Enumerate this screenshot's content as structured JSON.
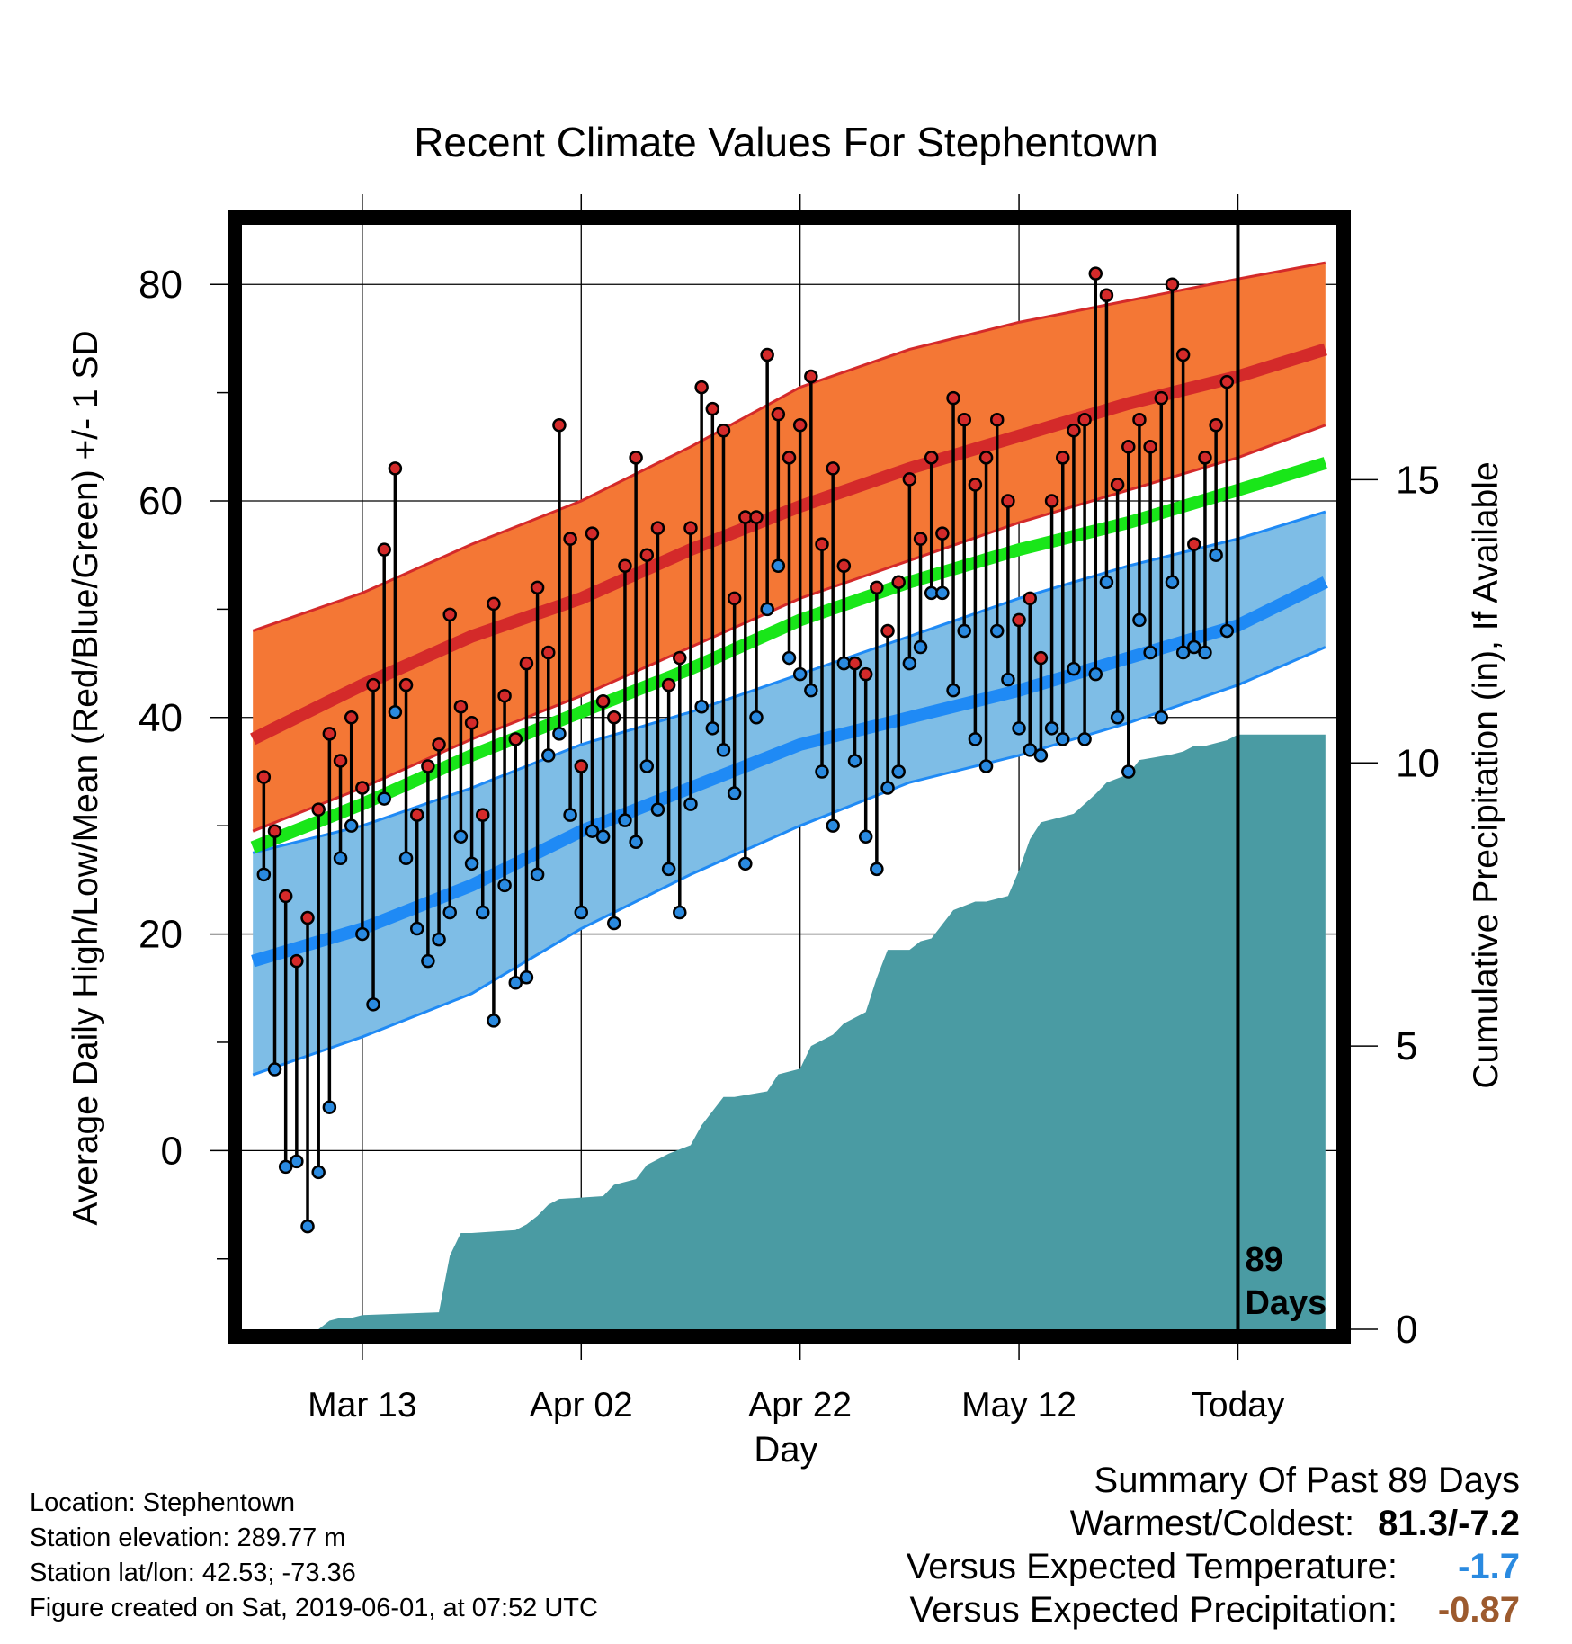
{
  "chart_data": {
    "type": "line",
    "title": "Recent Climate Values For Stephentown",
    "xlabel": "Day",
    "ylabel_left": "Average Daily High/Low/Mean (Red/Blue/Green) +/- 1 SD",
    "ylabel_right": "Cumulative Precipitation (in), If Available",
    "x_ticks": [
      {
        "day": 10,
        "label": "Mar 13"
      },
      {
        "day": 30,
        "label": "Apr 02"
      },
      {
        "day": 50,
        "label": "Apr 22"
      },
      {
        "day": 70,
        "label": "May 12"
      },
      {
        "day": 90,
        "label": "Today"
      }
    ],
    "xlim": [
      -1,
      99
    ],
    "ylim_left": [
      -16.5,
      85.5
    ],
    "y_ticks_left": [
      0,
      20,
      40,
      60,
      80
    ],
    "ylim_right": [
      0,
      19.5
    ],
    "y_ticks_right": [
      0,
      5,
      10,
      15
    ],
    "today_day": 90,
    "today_annotation": [
      "89",
      "Days"
    ],
    "normals": {
      "day": [
        0,
        10,
        20,
        30,
        40,
        50,
        60,
        70,
        80,
        90,
        98
      ],
      "high_mean": [
        38,
        43,
        47.5,
        51,
        55.5,
        59.5,
        63,
        66,
        69,
        71.5,
        74
      ],
      "high_sd_lower": [
        29.5,
        33.5,
        38,
        42,
        46.5,
        51,
        54.5,
        58,
        61,
        64,
        67
      ],
      "high_sd_upper": [
        48,
        51.5,
        56,
        60,
        65,
        70.5,
        74,
        76.5,
        78.5,
        80.5,
        82
      ],
      "mean": [
        28,
        32,
        36.5,
        40.5,
        44.5,
        49,
        52.5,
        55.5,
        58,
        61,
        63.5
      ],
      "low_mean": [
        17.5,
        20.5,
        24.5,
        29.5,
        33.5,
        37.5,
        40,
        42.5,
        45.5,
        48.5,
        52.5
      ],
      "low_sd_upper": [
        27.5,
        30,
        33.5,
        37.5,
        40.5,
        44,
        47.5,
        51,
        54,
        56.5,
        59
      ],
      "low_sd_lower": [
        7,
        10.5,
        14.5,
        20.5,
        25.5,
        30,
        34,
        36.5,
        39.5,
        43,
        46.5
      ]
    },
    "daily": {
      "day": [
        1,
        2,
        3,
        4,
        5,
        6,
        7,
        8,
        9,
        10,
        11,
        12,
        13,
        14,
        15,
        16,
        17,
        18,
        19,
        20,
        21,
        22,
        23,
        24,
        25,
        26,
        27,
        28,
        29,
        30,
        31,
        32,
        33,
        34,
        35,
        36,
        37,
        38,
        39,
        40,
        41,
        42,
        43,
        44,
        45,
        46,
        47,
        48,
        49,
        50,
        51,
        52,
        53,
        54,
        55,
        56,
        57,
        58,
        59,
        60,
        61,
        62,
        63,
        64,
        65,
        66,
        67,
        68,
        69,
        70,
        71,
        72,
        73,
        74,
        75,
        76,
        77,
        78,
        79,
        80,
        81,
        82,
        83,
        84,
        85,
        86,
        87,
        88,
        89
      ],
      "high": [
        34.5,
        29.5,
        23.5,
        17.5,
        21.5,
        31.5,
        38.5,
        36,
        40,
        33.5,
        43,
        55.5,
        63,
        43,
        31,
        35.5,
        37.5,
        49.5,
        41,
        39.5,
        31,
        50.5,
        42,
        38,
        45,
        52,
        46,
        67,
        56.5,
        35.5,
        57,
        41.5,
        40,
        54,
        64,
        55,
        57.5,
        43,
        45.5,
        57.5,
        70.5,
        68.5,
        66.5,
        51,
        58.5,
        58.5,
        73.5,
        68,
        64,
        67,
        71.5,
        56,
        63,
        54,
        45,
        44,
        52,
        48,
        52.5,
        62,
        56.5,
        64,
        57,
        69.5,
        67.5,
        61.5,
        64,
        67.5,
        60,
        49,
        51,
        45.5,
        60,
        64,
        66.5,
        67.5,
        81,
        79,
        61.5,
        65,
        67.5,
        65,
        69.5,
        80,
        73.5,
        56,
        64,
        67,
        71
      ],
      "low": [
        25.5,
        7.5,
        -1.5,
        -1,
        -7,
        -2,
        4,
        27,
        30,
        20,
        13.5,
        32.5,
        40.5,
        27,
        20.5,
        17.5,
        19.5,
        22,
        29,
        26.5,
        22,
        12,
        24.5,
        15.5,
        16,
        25.5,
        36.5,
        38.5,
        31,
        22,
        29.5,
        29,
        21,
        30.5,
        28.5,
        35.5,
        31.5,
        26,
        22,
        32,
        41,
        39,
        37,
        33,
        26.5,
        40,
        50,
        54,
        45.5,
        44,
        42.5,
        35,
        30,
        45,
        36,
        29,
        26,
        33.5,
        35,
        45,
        46.5,
        51.5,
        51.5,
        42.5,
        48,
        38,
        35.5,
        48,
        43.5,
        39,
        37,
        36.5,
        39,
        38,
        44.5,
        38,
        44,
        52.5,
        40,
        35,
        49,
        46,
        40,
        52.5,
        46,
        46.5,
        46,
        55,
        48
      ]
    },
    "precip_cumulative": {
      "day": [
        0,
        6,
        7,
        8,
        9,
        10,
        17,
        18,
        19,
        20,
        24,
        25,
        26,
        27,
        28,
        32,
        33,
        35,
        36,
        38,
        40,
        41,
        42,
        43,
        44,
        47,
        48,
        50,
        51,
        53,
        54,
        56,
        57,
        58,
        60,
        61,
        62,
        64,
        66,
        67,
        69,
        70,
        71,
        72,
        74,
        75,
        77,
        78,
        80,
        81,
        84,
        85,
        86,
        87,
        89,
        90,
        98
      ],
      "values": [
        0,
        0,
        0.15,
        0.2,
        0.2,
        0.25,
        0.3,
        1.3,
        1.7,
        1.7,
        1.75,
        1.85,
        2,
        2.2,
        2.3,
        2.35,
        2.55,
        2.65,
        2.9,
        3.1,
        3.25,
        3.6,
        3.85,
        4.1,
        4.1,
        4.2,
        4.5,
        4.6,
        5,
        5.2,
        5.4,
        5.6,
        6.2,
        6.7,
        6.7,
        6.85,
        6.9,
        7.4,
        7.55,
        7.55,
        7.65,
        8.1,
        8.65,
        8.95,
        9.05,
        9.1,
        9.45,
        9.65,
        9.8,
        10.05,
        10.15,
        10.2,
        10.3,
        10.3,
        10.4,
        10.5,
        10.5
      ]
    },
    "colors": {
      "high_band": "#f47735",
      "high_line": "#d42a2a",
      "mean_line": "#19e619",
      "low_band": "#7ebde6",
      "low_line": "#1f8af5",
      "precip": "#4a9ba3",
      "high_marker": "#d42a2a",
      "low_marker": "#2a8ae0"
    },
    "grid": true,
    "legend": "none"
  },
  "info": {
    "location": "Location: Stephentown",
    "elevation": "Station elevation: 289.77 m",
    "latlon": "Station lat/lon: 42.53; -73.36",
    "created": "Figure created on Sat, 2019-06-01, at 07:52 UTC"
  },
  "summary": {
    "title": "Summary Of Past 89 Days",
    "warmest_label": "Warmest/Coldest:",
    "warmest_value": "81.3/-7.2",
    "temp_label": "Versus Expected Temperature:",
    "temp_value": "-1.7",
    "temp_color": "#2a8ae0",
    "precip_label": "Versus Expected Precipitation:",
    "precip_value": "-0.87",
    "precip_color": "#9c5a2e"
  }
}
